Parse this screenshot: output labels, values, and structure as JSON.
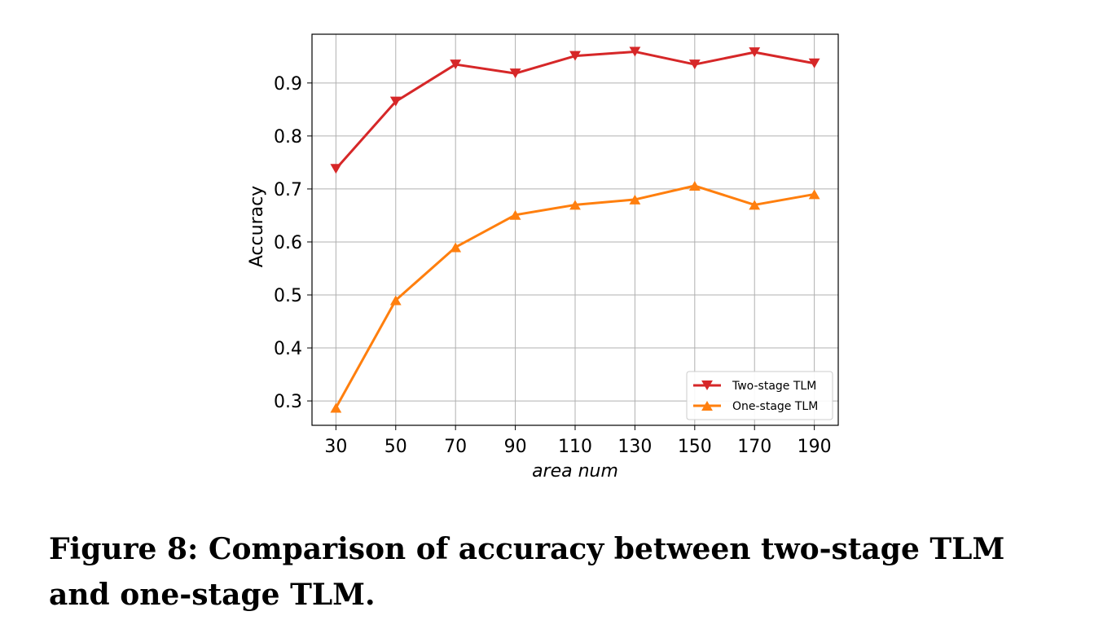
{
  "figure": {
    "caption": "Figure 8: Comparison of accuracy between two-stage TLM and one-stage TLM."
  },
  "chart_data": {
    "type": "line",
    "title": "",
    "xlabel": "area  num",
    "ylabel": "Accuracy",
    "x": [
      30,
      50,
      70,
      90,
      110,
      130,
      150,
      170,
      190
    ],
    "xticks": [
      "30",
      "50",
      "70",
      "90",
      "110",
      "130",
      "150",
      "170",
      "190"
    ],
    "yticks": [
      "0.3",
      "0.4",
      "0.5",
      "0.6",
      "0.7",
      "0.8",
      "0.9"
    ],
    "ylim": [
      0.254,
      0.992
    ],
    "xlim": [
      22,
      198
    ],
    "grid": true,
    "legend_position": "lower-right",
    "series": [
      {
        "name": "Two-stage TLM",
        "color": "#d62728",
        "marker": "triangle-down",
        "values": [
          0.738,
          0.865,
          0.935,
          0.918,
          0.951,
          0.959,
          0.935,
          0.958,
          0.937
        ]
      },
      {
        "name": "One-stage TLM",
        "color": "#ff7f0e",
        "marker": "triangle-up",
        "values": [
          0.287,
          0.49,
          0.59,
          0.651,
          0.67,
          0.68,
          0.706,
          0.67,
          0.69
        ]
      }
    ]
  }
}
